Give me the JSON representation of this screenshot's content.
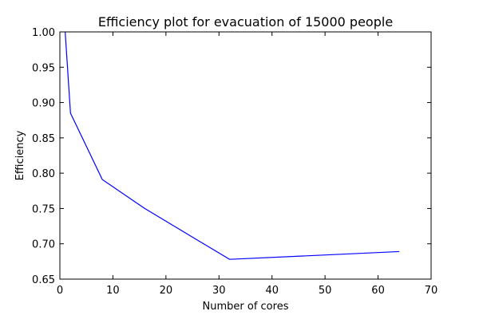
{
  "chart_data": {
    "type": "line",
    "title": "Efficiency plot for evacuation of 15000 people",
    "xlabel": "Number of cores",
    "ylabel": "Efficiency",
    "xlim": [
      0,
      70
    ],
    "ylim": [
      0.65,
      1.0
    ],
    "xticks": [
      "0",
      "10",
      "20",
      "30",
      "40",
      "50",
      "60",
      "70"
    ],
    "yticks": [
      "0.65",
      "0.70",
      "0.75",
      "0.80",
      "0.85",
      "0.90",
      "0.95",
      "1.00"
    ],
    "grid": false,
    "series": [
      {
        "color": "#0000ff",
        "x": [
          1,
          2,
          8,
          16,
          32,
          64
        ],
        "y": [
          1.0,
          0.885,
          0.791,
          0.75,
          0.678,
          0.689
        ]
      }
    ]
  }
}
